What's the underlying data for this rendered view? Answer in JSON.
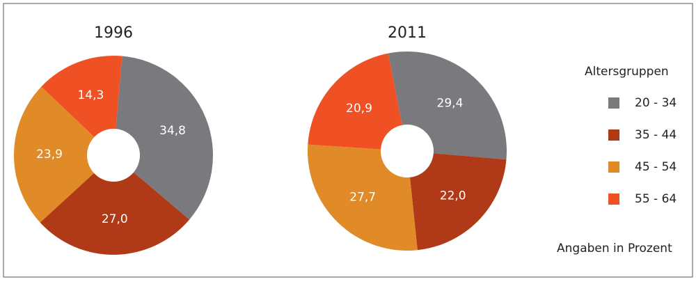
{
  "chart_data": [
    {
      "type": "pie",
      "title": "1996",
      "categories": [
        "20 - 34",
        "35 - 44",
        "45 - 54",
        "55 - 64"
      ],
      "values": [
        34.8,
        27.0,
        23.9,
        14.3
      ],
      "value_labels": [
        "34,8",
        "27,0",
        "23,9",
        "14,3"
      ],
      "colors": [
        "#7a7a7e",
        "#b03a17",
        "#e08a28",
        "#ef5124"
      ]
    },
    {
      "type": "pie",
      "title": "2011",
      "categories": [
        "20 - 34",
        "35 - 44",
        "45 - 54",
        "55 - 64"
      ],
      "values": [
        29.4,
        22.0,
        27.7,
        20.9
      ],
      "value_labels": [
        "29,4",
        "22,0",
        "27,7",
        "20,9"
      ],
      "colors": [
        "#7a7a7e",
        "#b03a17",
        "#e08a28",
        "#ef5124"
      ]
    }
  ],
  "legend_title": "Altersgruppen",
  "note": "Angaben in Prozent"
}
